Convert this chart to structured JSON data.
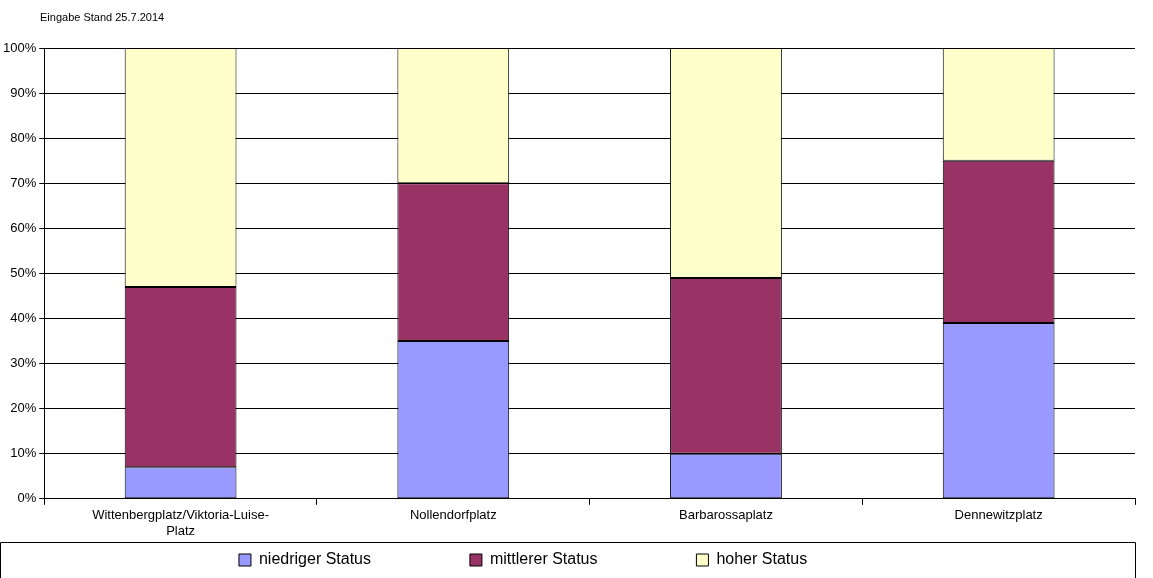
{
  "chart_data": {
    "type": "bar",
    "stacked": true,
    "annotations": [
      "Eingabe Stand 25.7.2014"
    ],
    "categories": [
      "Wittenbergplatz/Viktoria-Luise-Platz",
      "Nollendorfplatz",
      "Barbarossaplatz",
      "Dennewitzplatz"
    ],
    "series": [
      {
        "name": "niedriger Status",
        "color": "#9999ff",
        "values": [
          7,
          35,
          10,
          39
        ]
      },
      {
        "name": "mittlerer Status",
        "color": "#993366",
        "values": [
          40,
          35,
          39,
          36
        ]
      },
      {
        "name": "hoher Status",
        "color": "#ffffcc",
        "values": [
          53,
          30,
          51,
          25
        ]
      }
    ],
    "ylim": [
      0,
      100
    ],
    "yticks": [
      {
        "value": 0,
        "label": "0%"
      },
      {
        "value": 10,
        "label": "10%"
      },
      {
        "value": 20,
        "label": "20%"
      },
      {
        "value": 30,
        "label": "30%"
      },
      {
        "value": 40,
        "label": "40%"
      },
      {
        "value": 50,
        "label": "50%"
      },
      {
        "value": 60,
        "label": "60%"
      },
      {
        "value": 70,
        "label": "70%"
      },
      {
        "value": 80,
        "label": "80%"
      },
      {
        "value": 90,
        "label": "90%"
      },
      {
        "value": 100,
        "label": "100%"
      }
    ],
    "grid": "y",
    "legend": "bottom"
  }
}
